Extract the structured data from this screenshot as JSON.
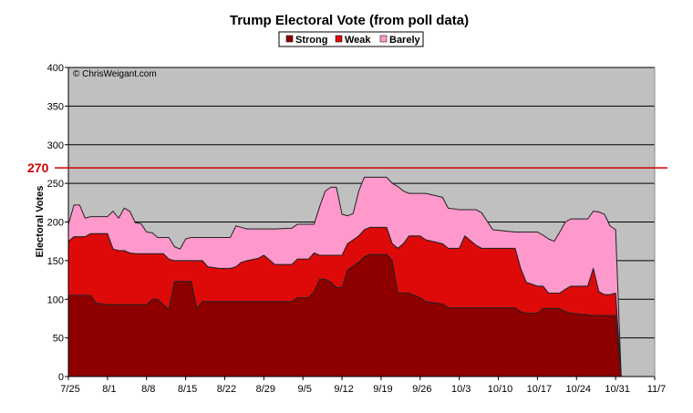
{
  "chart_data": {
    "type": "area",
    "stacked": true,
    "title": "Trump Electoral Vote (from poll data)",
    "ylabel": "Electoral Votes",
    "xlabel": "",
    "watermark": "© ChrisWeigant.com",
    "ylim": [
      0,
      400
    ],
    "yticks": [
      0,
      50,
      100,
      150,
      200,
      250,
      300,
      350,
      400
    ],
    "xticks": [
      "7/25",
      "8/1",
      "8/8",
      "8/15",
      "8/22",
      "8/29",
      "9/5",
      "9/12",
      "9/19",
      "9/26",
      "10/3",
      "10/10",
      "10/17",
      "10/24",
      "10/31",
      "11/7"
    ],
    "xlim": [
      "7/25",
      "11/7"
    ],
    "grid": true,
    "legend_position": "top",
    "reference_line": {
      "value": 270,
      "label": "270",
      "color": "#d40000"
    },
    "colors": {
      "Strong": "#8e0000",
      "Weak": "#de0a0a",
      "Barely": "#ff99cc",
      "plot_background": "#c0c0c0"
    },
    "dates": [
      "7/25",
      "7/26",
      "7/27",
      "7/28",
      "7/29",
      "7/30",
      "8/1",
      "8/2",
      "8/3",
      "8/4",
      "8/5",
      "8/6",
      "8/7",
      "8/8",
      "8/9",
      "8/10",
      "8/11",
      "8/12",
      "8/13",
      "8/14",
      "8/15",
      "8/16",
      "8/17",
      "8/18",
      "8/19",
      "8/21",
      "8/23",
      "8/24",
      "8/25",
      "8/26",
      "8/28",
      "8/29",
      "8/31",
      "9/3",
      "9/4",
      "9/6",
      "9/7",
      "9/8",
      "9/9",
      "9/10",
      "9/11",
      "9/12",
      "9/13",
      "9/14",
      "9/15",
      "9/16",
      "9/17",
      "9/20",
      "9/21",
      "9/22",
      "9/23",
      "9/24",
      "9/26",
      "9/27",
      "9/30",
      "10/1",
      "10/3",
      "10/4",
      "10/6",
      "10/7",
      "10/9",
      "10/13",
      "10/14",
      "10/15",
      "10/17",
      "10/18",
      "10/19",
      "10/20",
      "10/21",
      "10/22",
      "10/23",
      "10/26",
      "10/27",
      "10/28",
      "10/29",
      "10/30",
      "10/31",
      "11/1"
    ],
    "series": [
      {
        "name": "Strong",
        "values": [
          105,
          105,
          105,
          105,
          105,
          95,
          93,
          93,
          93,
          93,
          93,
          93,
          93,
          93,
          100,
          100,
          93,
          87,
          123,
          123,
          123,
          123,
          88,
          97,
          97,
          97,
          97,
          97,
          97,
          97,
          97,
          97,
          97,
          97,
          102,
          102,
          110,
          126,
          126,
          122,
          115,
          115,
          138,
          143,
          148,
          155,
          158,
          158,
          150,
          108,
          108,
          108,
          102,
          97,
          94,
          89,
          89,
          89,
          89,
          89,
          89,
          89,
          84,
          82,
          82,
          88,
          88,
          88,
          88,
          84,
          82,
          80,
          79,
          79,
          79,
          79,
          79,
          0
        ]
      },
      {
        "name": "Weak",
        "values": [
          70,
          76,
          76,
          76,
          80,
          90,
          92,
          72,
          70,
          70,
          67,
          66,
          66,
          66,
          59,
          59,
          66,
          65,
          27,
          27,
          27,
          27,
          62,
          53,
          45,
          43,
          43,
          45,
          51,
          53,
          56,
          60,
          48,
          48,
          50,
          50,
          50,
          31,
          31,
          35,
          42,
          42,
          34,
          34,
          34,
          35,
          35,
          35,
          22,
          58,
          64,
          74,
          80,
          80,
          78,
          77,
          77,
          93,
          81,
          77,
          77,
          77,
          56,
          40,
          35,
          29,
          20,
          20,
          20,
          29,
          35,
          37,
          61,
          31,
          27,
          27,
          29,
          0
        ]
      },
      {
        "name": "Barely",
        "values": [
          22,
          41,
          41,
          24,
          22,
          22,
          22,
          49,
          42,
          55,
          54,
          40,
          39,
          28,
          27,
          21,
          21,
          28,
          18,
          15,
          28,
          30,
          30,
          30,
          38,
          40,
          40,
          53,
          45,
          41,
          38,
          34,
          46,
          47,
          45,
          45,
          37,
          63,
          83,
          88,
          88,
          53,
          36,
          34,
          58,
          68,
          65,
          65,
          78,
          80,
          68,
          55,
          55,
          60,
          60,
          52,
          50,
          34,
          46,
          46,
          24,
          21,
          47,
          65,
          70,
          66,
          70,
          67,
          79,
          87,
          87,
          87,
          74,
          103,
          104,
          89,
          82,
          0
        ]
      }
    ]
  }
}
